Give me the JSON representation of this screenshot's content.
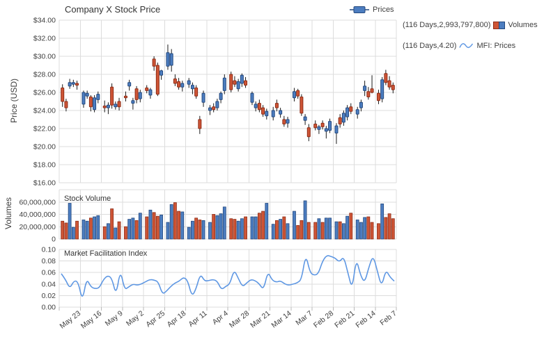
{
  "ui": {
    "title": "Company X Stock Price",
    "legend": {
      "prices": {
        "label": "Prices"
      },
      "volumes": {
        "prefix": "(116 Days,2,993,797,800)",
        "label": "Volumes"
      },
      "mfi": {
        "prefix": "(116 Days,4.20)",
        "label": "MFI: Prices"
      }
    },
    "axes": {
      "price_label": "Price (USD)",
      "volumes_label": "Volumes"
    },
    "panel_titles": {
      "volume": "Stock Volume",
      "mfi": "Market Facilitation Index"
    },
    "colors": {
      "up_candle": "#4C7DC0",
      "up_border": "#24497E",
      "down_candle": "#CE5536",
      "down_border": "#8E2B15",
      "mfi_line": "#5E97E3",
      "grid": "#DCDCDC",
      "text": "#3F3F3F"
    }
  },
  "chart_data": [
    {
      "type": "candlestick",
      "title": "Company X Stock Price",
      "ylabel": "Price (USD)",
      "ylim": [
        16,
        34
      ],
      "ytick_labels": [
        "$34.00",
        "$32.00",
        "$30.00",
        "$28.00",
        "$26.00",
        "$24.00",
        "$22.00",
        "$20.00",
        "$18.00",
        "$16.00"
      ],
      "ytick_values": [
        34,
        32,
        30,
        28,
        26,
        24,
        22,
        20,
        18,
        16
      ],
      "x_week_labels": [
        "May 23",
        "May 16",
        "May 9",
        "May 2",
        "Apr 25",
        "Apr 18",
        "Apr 11",
        "Apr 4",
        "Mar 28",
        "Mar 21",
        "Mar 14",
        "Mar 7",
        "Feb 28",
        "Feb 21",
        "Feb 14",
        "Feb 7"
      ],
      "candles_per_week": 5,
      "grid": true,
      "legend_position": "top-right",
      "ohlc": [
        [
          26.5,
          26.9,
          24.4,
          25.0
        ],
        [
          25.0,
          25.3,
          23.9,
          24.3
        ],
        [
          26.7,
          27.5,
          26.4,
          27.1
        ],
        [
          26.9,
          27.4,
          26.6,
          27.1
        ],
        [
          27.0,
          27.3,
          26.3,
          26.8
        ],
        [
          24.7,
          26.2,
          24.3,
          26.0
        ],
        [
          25.6,
          26.2,
          25.3,
          25.9
        ],
        [
          25.5,
          25.7,
          23.9,
          24.4
        ],
        [
          24.1,
          25.7,
          23.8,
          25.4
        ],
        [
          25.2,
          26.1,
          24.8,
          25.8
        ],
        [
          24.5,
          25.1,
          23.8,
          24.3
        ],
        [
          24.3,
          24.9,
          23.6,
          24.6
        ],
        [
          26.6,
          27.0,
          24.2,
          24.6
        ],
        [
          24.4,
          25.0,
          24.1,
          24.7
        ],
        [
          25.0,
          25.4,
          24.0,
          24.4
        ],
        [
          25.6,
          26.1,
          25.0,
          25.4
        ],
        [
          26.7,
          27.4,
          26.2,
          27.1
        ],
        [
          24.8,
          25.4,
          24.1,
          25.1
        ],
        [
          26.4,
          26.7,
          24.8,
          25.2
        ],
        [
          25.3,
          26.3,
          24.9,
          26.0
        ],
        [
          26.5,
          26.8,
          25.9,
          26.2
        ],
        [
          25.7,
          26.5,
          25.3,
          26.3
        ],
        [
          29.7,
          30.0,
          28.4,
          28.9
        ],
        [
          29.0,
          29.3,
          25.6,
          25.8
        ],
        [
          27.9,
          28.5,
          27.4,
          28.4
        ],
        [
          28.9,
          31.3,
          28.5,
          30.4
        ],
        [
          29.0,
          30.8,
          28.3,
          30.3
        ],
        [
          27.5,
          28.0,
          26.7,
          27.0
        ],
        [
          27.2,
          27.6,
          26.3,
          26.6
        ],
        [
          26.6,
          27.3,
          26.1,
          27.0
        ],
        [
          26.9,
          27.6,
          26.5,
          27.3
        ],
        [
          26.4,
          27.1,
          25.8,
          26.8
        ],
        [
          26.5,
          26.8,
          25.3,
          25.6
        ],
        [
          23.0,
          23.4,
          21.4,
          22.0
        ],
        [
          24.9,
          26.2,
          24.4,
          25.9
        ],
        [
          24.0,
          24.6,
          23.5,
          24.3
        ],
        [
          24.4,
          24.8,
          23.8,
          24.1
        ],
        [
          24.3,
          25.3,
          24.0,
          25.0
        ],
        [
          25.2,
          26.1,
          24.8,
          25.9
        ],
        [
          26.2,
          28.0,
          25.8,
          27.6
        ],
        [
          28.0,
          28.3,
          26.0,
          26.3
        ],
        [
          27.3,
          27.8,
          26.6,
          26.9
        ],
        [
          26.4,
          27.5,
          26.1,
          27.2
        ],
        [
          27.0,
          28.1,
          26.6,
          27.9
        ],
        [
          27.3,
          27.7,
          26.5,
          26.8
        ],
        [
          24.9,
          26.1,
          24.6,
          25.9
        ],
        [
          24.3,
          25.0,
          23.9,
          24.7
        ],
        [
          24.8,
          25.2,
          23.8,
          24.1
        ],
        [
          24.3,
          24.6,
          23.3,
          23.6
        ],
        [
          23.4,
          24.2,
          23.0,
          23.9
        ],
        [
          23.3,
          24.4,
          22.9,
          24.0
        ],
        [
          24.8,
          25.2,
          23.9,
          24.3
        ],
        [
          23.6,
          24.3,
          23.2,
          24.0
        ],
        [
          23.0,
          23.4,
          22.2,
          22.5
        ],
        [
          22.6,
          23.3,
          22.1,
          23.0
        ],
        [
          25.4,
          26.5,
          25.0,
          26.1
        ],
        [
          26.2,
          26.4,
          25.3,
          25.6
        ],
        [
          25.5,
          25.8,
          23.4,
          23.7
        ],
        [
          22.9,
          23.6,
          22.4,
          23.3
        ],
        [
          22.1,
          22.5,
          20.6,
          21.1
        ],
        [
          22.5,
          22.9,
          21.8,
          22.1
        ],
        [
          21.9,
          22.4,
          21.4,
          22.2
        ],
        [
          22.6,
          22.9,
          21.9,
          22.2
        ],
        [
          21.7,
          22.3,
          20.9,
          22.0
        ],
        [
          21.8,
          23.1,
          21.5,
          22.8
        ],
        [
          21.5,
          22.6,
          20.3,
          22.3
        ],
        [
          23.2,
          23.6,
          22.1,
          22.5
        ],
        [
          22.7,
          24.0,
          22.3,
          23.7
        ],
        [
          23.3,
          24.6,
          22.9,
          24.3
        ],
        [
          24.4,
          24.8,
          23.6,
          23.9
        ],
        [
          23.6,
          24.4,
          23.1,
          24.1
        ],
        [
          24.3,
          25.2,
          23.9,
          24.9
        ],
        [
          26.2,
          27.3,
          25.6,
          26.7
        ],
        [
          26.1,
          26.6,
          25.2,
          25.5
        ],
        [
          26.4,
          27.9,
          25.9,
          26.0
        ],
        [
          25.9,
          26.3,
          24.7,
          25.1
        ],
        [
          25.3,
          27.7,
          24.9,
          27.4
        ],
        [
          28.1,
          28.5,
          26.8,
          27.1
        ],
        [
          27.3,
          27.8,
          26.3,
          26.6
        ],
        [
          26.8,
          27.1,
          25.9,
          26.3
        ]
      ]
    },
    {
      "type": "bar",
      "title": "Stock Volume",
      "ylabel": "Volumes",
      "ylim": [
        0,
        80000000
      ],
      "ytick_labels": [
        "60,000,000",
        "40,000,000",
        "20,000,000",
        "0"
      ],
      "ytick_values_millions": [
        60,
        40,
        20,
        0
      ],
      "grid": true,
      "colors_follow_candles": true,
      "values_millions": [
        29,
        26,
        58,
        19,
        29,
        31,
        29,
        34,
        36,
        38,
        20,
        25,
        49,
        18,
        28,
        20,
        32,
        34,
        30,
        42,
        36,
        47,
        43,
        37,
        39,
        27,
        56,
        59,
        45,
        44,
        19,
        29,
        34,
        31,
        30,
        27,
        40,
        38,
        41,
        52,
        33,
        32,
        29,
        33,
        36,
        36,
        36,
        42,
        45,
        58,
        24,
        30,
        32,
        36,
        25,
        45,
        22,
        30,
        62,
        27,
        27,
        33,
        27,
        34,
        34,
        28,
        28,
        25,
        37,
        42,
        31,
        27,
        35,
        36,
        27,
        25,
        57,
        35,
        41,
        33
      ]
    },
    {
      "type": "line",
      "title": "Market Facilitation Index",
      "ylim": [
        0,
        0.1
      ],
      "ytick_labels": [
        "0.10",
        "0.08",
        "0.06",
        "0.04",
        "0.02",
        "0.00"
      ],
      "ytick_values": [
        0.1,
        0.08,
        0.06,
        0.04,
        0.02,
        0.0
      ],
      "grid": true,
      "values": [
        0.058,
        0.048,
        0.032,
        0.046,
        0.044,
        0.01,
        0.05,
        0.035,
        0.032,
        0.033,
        0.048,
        0.055,
        0.05,
        0.02,
        0.065,
        0.03,
        0.035,
        0.04,
        0.038,
        0.04,
        0.044,
        0.048,
        0.047,
        0.044,
        0.022,
        0.028,
        0.036,
        0.042,
        0.045,
        0.052,
        0.046,
        0.018,
        0.032,
        0.058,
        0.045,
        0.046,
        0.048,
        0.045,
        0.03,
        0.036,
        0.04,
        0.065,
        0.05,
        0.035,
        0.042,
        0.048,
        0.046,
        0.04,
        0.03,
        0.062,
        0.047,
        0.043,
        0.046,
        0.04,
        0.038,
        0.04,
        0.042,
        0.048,
        0.092,
        0.06,
        0.055,
        0.058,
        0.08,
        0.09,
        0.088,
        0.085,
        0.078,
        0.088,
        0.06,
        0.03,
        0.085,
        0.055,
        0.042,
        0.07,
        0.09,
        0.062,
        0.035,
        0.065,
        0.052,
        0.045
      ]
    }
  ]
}
